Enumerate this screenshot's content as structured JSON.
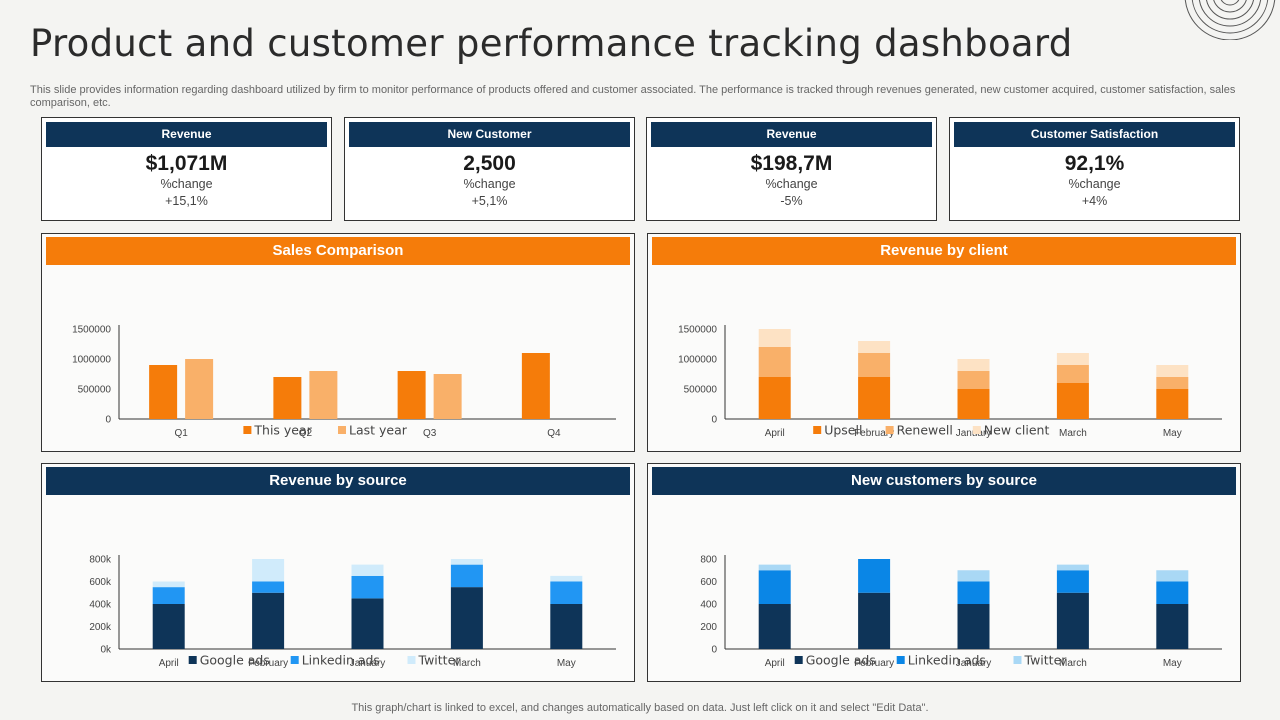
{
  "title": "Product and customer performance tracking dashboard",
  "subtitle": "This slide provides information regarding dashboard utilized by firm to  monitor performance of products offered and customer associated. The performance is tracked through revenues generated, new customer acquired, customer satisfaction, sales comparison, etc.",
  "footer": "This graph/chart is linked to excel,  and changes automatically based on data. Just left click on it and select \"Edit Data\".",
  "kpis": [
    {
      "label": "Revenue",
      "value": "$1,071M",
      "change_label": "%change",
      "change": "+15,1%"
    },
    {
      "label": "New Customer",
      "value": "2,500",
      "change_label": "%change",
      "change": "+5,1%"
    },
    {
      "label": "Revenue",
      "value": "$198,7M",
      "change_label": "%change",
      "change": "-5%"
    },
    {
      "label": "Customer  Satisfaction",
      "value": "92,1%",
      "change_label": "%change",
      "change": "+4%"
    }
  ],
  "chart_data": [
    {
      "id": "sales",
      "type": "bar",
      "title": "Sales Comparison",
      "categories": [
        "Q1",
        "Q2",
        "Q3",
        "Q4"
      ],
      "series": [
        {
          "name": "This year",
          "values": [
            900000,
            700000,
            800000,
            1100000
          ],
          "color": "#f57c0a"
        },
        {
          "name": "Last year",
          "values": [
            1000000,
            800000,
            750000,
            null
          ],
          "color": "#f9b069"
        }
      ],
      "ylim": [
        0,
        1500000
      ],
      "yticks": [
        0,
        500000,
        1000000,
        1500000
      ],
      "ytick_labels": [
        "0",
        "500000",
        "1000000",
        "1500000"
      ],
      "stacked": false
    },
    {
      "id": "client",
      "type": "bar",
      "title": "Revenue by client",
      "categories": [
        "April",
        "February",
        "January",
        "March",
        "May"
      ],
      "series": [
        {
          "name": "Upsell",
          "values": [
            700000,
            700000,
            500000,
            600000,
            500000
          ],
          "color": "#f57c0a"
        },
        {
          "name": "Renewell",
          "values": [
            500000,
            400000,
            300000,
            300000,
            200000
          ],
          "color": "#f9b069"
        },
        {
          "name": "New client",
          "values": [
            300000,
            200000,
            200000,
            200000,
            200000
          ],
          "color": "#fde2c4"
        }
      ],
      "ylim": [
        0,
        1500000
      ],
      "yticks": [
        0,
        500000,
        1000000,
        1500000
      ],
      "ytick_labels": [
        "0",
        "500000",
        "1000000",
        "1500000"
      ],
      "stacked": true
    },
    {
      "id": "source",
      "type": "bar",
      "title": "Revenue by source",
      "categories": [
        "April",
        "February",
        "January",
        "March",
        "May"
      ],
      "series": [
        {
          "name": "Google ads",
          "values": [
            400,
            500,
            450,
            550,
            400
          ],
          "color": "#0e3458"
        },
        {
          "name": "Linkedin ads",
          "values": [
            150,
            100,
            200,
            200,
            200
          ],
          "color": "#2196f3"
        },
        {
          "name": "Twitter",
          "values": [
            50,
            200,
            100,
            50,
            50
          ],
          "color": "#d0ebfb"
        }
      ],
      "ylim": [
        0,
        800
      ],
      "yticks": [
        0,
        200,
        400,
        600,
        800
      ],
      "ytick_labels": [
        "0k",
        "200k",
        "400k",
        "600k",
        "800k"
      ],
      "stacked": true
    },
    {
      "id": "customers",
      "type": "bar",
      "title": "New customers by source",
      "categories": [
        "April",
        "February",
        "January",
        "March",
        "May"
      ],
      "series": [
        {
          "name": "Google ads",
          "values": [
            400,
            500,
            400,
            500,
            400
          ],
          "color": "#0e3458"
        },
        {
          "name": "Linkedin ads",
          "values": [
            300,
            300,
            200,
            200,
            200
          ],
          "color": "#0a86e6"
        },
        {
          "name": "Twitter",
          "values": [
            50,
            0,
            100,
            50,
            100
          ],
          "color": "#a9d8f5"
        }
      ],
      "ylim": [
        0,
        800
      ],
      "yticks": [
        0,
        200,
        400,
        600,
        800
      ],
      "ytick_labels": [
        "0",
        "200",
        "400",
        "600",
        "800"
      ],
      "stacked": true
    }
  ]
}
